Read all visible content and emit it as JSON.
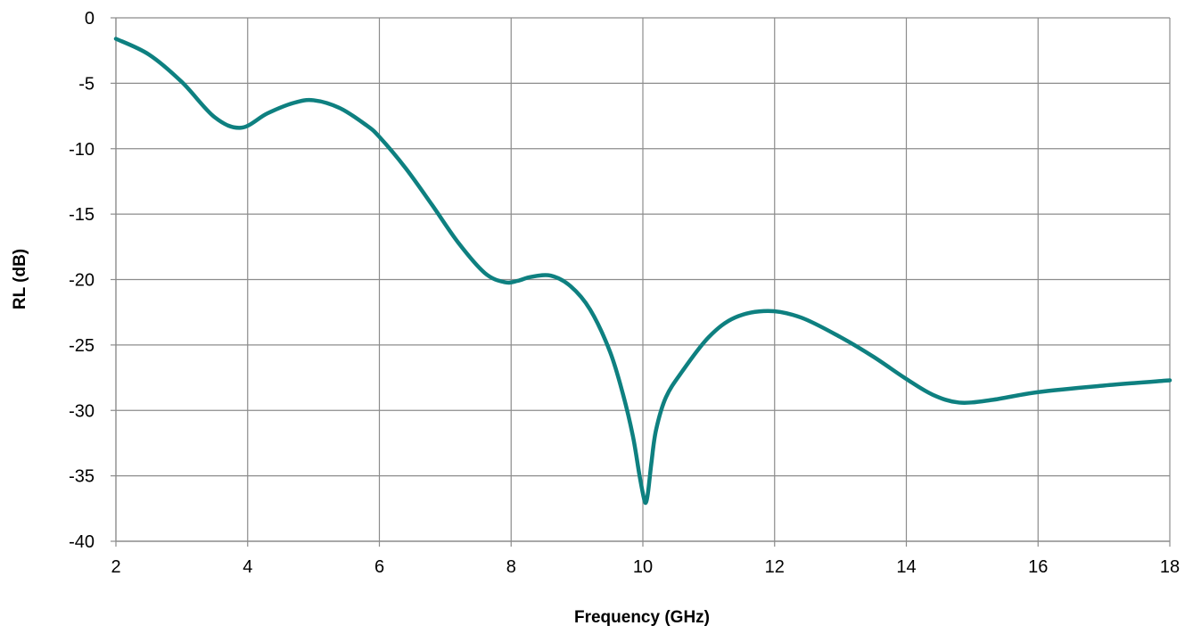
{
  "chart_data": {
    "type": "line",
    "title": "",
    "xlabel": "Frequency (GHz)",
    "ylabel": "RL (dB)",
    "xlim": [
      2,
      18
    ],
    "ylim": [
      -40,
      0
    ],
    "x_ticks": [
      "2",
      "4",
      "6",
      "8",
      "10",
      "12",
      "14",
      "16",
      "18"
    ],
    "y_ticks": [
      "0",
      "-5",
      "-10",
      "-15",
      "-20",
      "-25",
      "-30",
      "-35",
      "-40"
    ],
    "grid": true,
    "legend": "none",
    "series": [
      {
        "color": "#0e8080",
        "x": [
          2.0,
          2.5,
          3.0,
          3.5,
          3.9,
          4.3,
          4.7,
          5.0,
          5.4,
          5.8,
          6.0,
          6.4,
          6.8,
          7.2,
          7.6,
          7.9,
          8.1,
          8.3,
          8.6,
          8.9,
          9.2,
          9.5,
          9.7,
          9.85,
          9.95,
          10.02,
          10.05,
          10.08,
          10.13,
          10.2,
          10.35,
          10.6,
          11.0,
          11.4,
          11.9,
          12.4,
          13.0,
          13.5,
          14.0,
          14.4,
          14.8,
          15.3,
          16.0,
          17.0,
          18.0
        ],
        "y": [
          -1.6,
          -2.8,
          -4.9,
          -7.6,
          -8.4,
          -7.3,
          -6.5,
          -6.3,
          -6.9,
          -8.2,
          -9.1,
          -11.5,
          -14.3,
          -17.2,
          -19.5,
          -20.2,
          -20.1,
          -19.8,
          -19.7,
          -20.5,
          -22.3,
          -25.5,
          -28.8,
          -32.0,
          -35.0,
          -36.8,
          -37.0,
          -36.2,
          -34.0,
          -31.5,
          -29.0,
          -27.0,
          -24.4,
          -22.9,
          -22.4,
          -22.9,
          -24.4,
          -25.9,
          -27.6,
          -28.8,
          -29.4,
          -29.2,
          -28.6,
          -28.1,
          -27.7
        ]
      }
    ]
  }
}
